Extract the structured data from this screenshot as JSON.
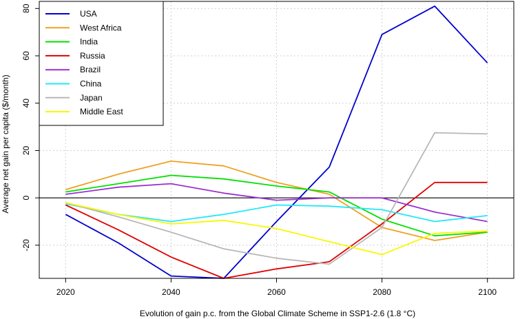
{
  "chart_data": {
    "type": "line",
    "title": "",
    "xlabel": "Evolution of  gain  p.c. from the Global Climate Scheme in SSP1-2.6 (1.8 °C)",
    "ylabel": "Average net gain per capita ($/month)",
    "xlim": [
      2015,
      2105
    ],
    "ylim": [
      -34,
      83
    ],
    "xticks": [
      2020,
      2040,
      2060,
      2080,
      2100
    ],
    "yticks": [
      -20,
      0,
      20,
      40,
      60,
      80
    ],
    "grid": true,
    "legend_position": "top-left",
    "zero_line": true,
    "x": [
      2020,
      2030,
      2040,
      2050,
      2060,
      2070,
      2080,
      2090,
      2100
    ],
    "series": [
      {
        "name": "USA",
        "color": "#0000cd",
        "values": [
          -7,
          -19,
          -33,
          -34,
          -10,
          13,
          69,
          81,
          57
        ]
      },
      {
        "name": "West Africa",
        "color": "#f0a020",
        "values": [
          3.5,
          10,
          15.5,
          13.5,
          6.5,
          1.5,
          -12.5,
          -18,
          -14.5
        ]
      },
      {
        "name": "India",
        "color": "#00e000",
        "values": [
          2.5,
          6,
          9.5,
          8,
          5,
          2.5,
          -9,
          -16,
          -14.5
        ]
      },
      {
        "name": "Russia",
        "color": "#e00000",
        "values": [
          -3,
          -13.5,
          -25,
          -34,
          -30,
          -27,
          -11,
          6.5,
          6.5
        ]
      },
      {
        "name": "Brazil",
        "color": "#9a30d0",
        "values": [
          1.5,
          4.5,
          6,
          2,
          -1,
          0,
          0,
          -6,
          -10
        ]
      },
      {
        "name": "China",
        "color": "#20e8f8",
        "values": [
          -2.5,
          -7,
          -10,
          -7,
          -3,
          -3.5,
          -5,
          -10,
          -7.5
        ]
      },
      {
        "name": "Japan",
        "color": "#b8b8b8",
        "values": [
          -2,
          -8,
          -14.5,
          -21.5,
          -25.5,
          -28,
          -12.5,
          27.5,
          27
        ]
      },
      {
        "name": "Middle East",
        "color": "#f8f800",
        "values": [
          -2,
          -7,
          -11,
          -9.5,
          -13,
          -18.5,
          -24,
          -15,
          -14
        ]
      }
    ]
  }
}
